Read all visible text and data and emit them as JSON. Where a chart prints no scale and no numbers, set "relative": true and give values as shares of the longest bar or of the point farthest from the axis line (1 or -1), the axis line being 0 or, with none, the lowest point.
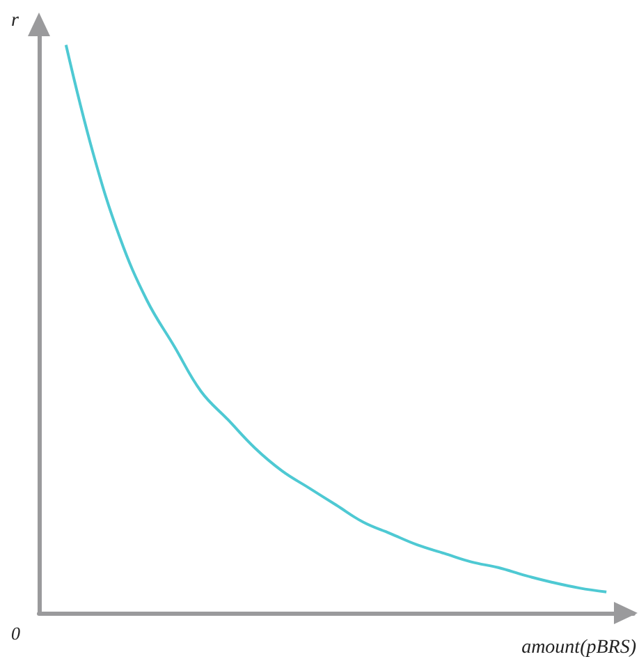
{
  "chart_data": {
    "type": "line",
    "relative": true,
    "xlabel": "amount(pBRS)",
    "ylabel": "r",
    "annotations": [
      "0"
    ],
    "categories": [
      null,
      null,
      null,
      null,
      null,
      null,
      null,
      null,
      null,
      null,
      null,
      null,
      null,
      null,
      null,
      null,
      null,
      null,
      null,
      null,
      null
    ],
    "series": [
      {
        "color": "#4ec9d3",
        "values": [
          1,
          0.81,
          0.66,
          0.55,
          0.47,
          0.39,
          0.34,
          0.29,
          0.25,
          0.22,
          0.19,
          0.16,
          0.14,
          0.12,
          0.105,
          0.09,
          0.08,
          0.066,
          0.054,
          0.044,
          0.037
        ]
      }
    ],
    "marker": "none",
    "grid": false
  }
}
